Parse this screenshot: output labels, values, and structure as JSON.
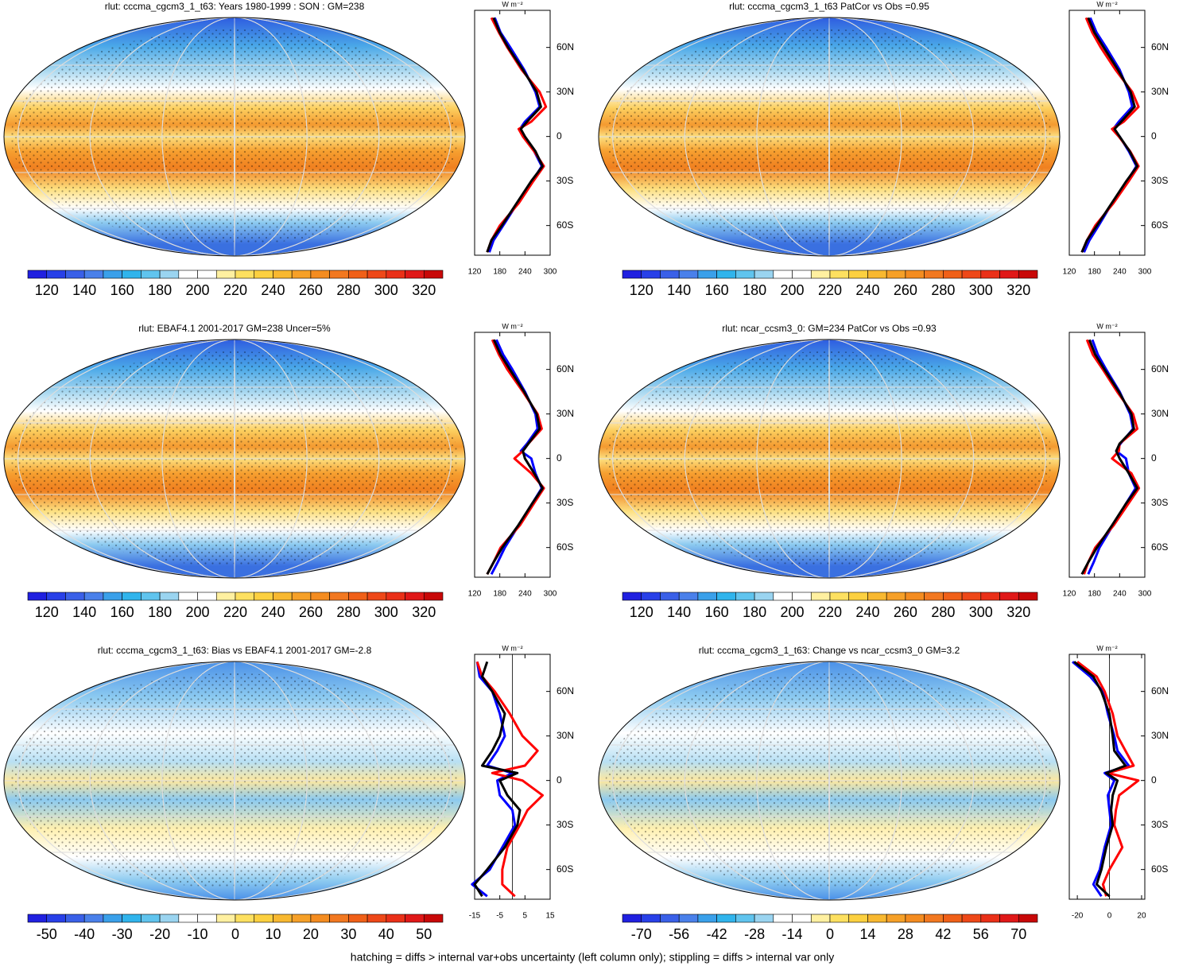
{
  "chart_data": [
    {
      "type": "map",
      "title": "rlut: cccma_cgcm3_1_t63: Years 1980-1999 : SON : GM=238",
      "kind": "abs",
      "colorbar_ticks": [
        120,
        140,
        160,
        180,
        200,
        220,
        240,
        260,
        280,
        300,
        320
      ],
      "profile": {
        "unit": "W m⁻²",
        "xlim": [
          120,
          300
        ],
        "xticks": [
          120,
          180,
          240,
          300
        ],
        "ylim": [
          -80,
          85
        ],
        "yticks": [
          {
            "value": 60,
            "label": "60N"
          },
          {
            "value": 30,
            "label": "30N"
          },
          0,
          {
            "value": -30,
            "label": "30S"
          },
          {
            "value": -60,
            "label": "60S"
          }
        ],
        "lat": [
          80,
          70,
          60,
          45,
          30,
          20,
          10,
          5,
          0,
          -10,
          -20,
          -30,
          -45,
          -60,
          -70,
          -78
        ],
        "series": [
          {
            "color": "#0000ff",
            "values": [
              168,
              182,
              205,
              238,
              265,
              275,
              240,
              228,
              238,
              262,
              280,
              258,
              222,
              188,
              165,
              155
            ]
          },
          {
            "color": "#ff0000",
            "values": [
              160,
              178,
              198,
              232,
              275,
              290,
              255,
              225,
              235,
              262,
              285,
              260,
              225,
              180,
              160,
              150
            ]
          },
          {
            "color": "#000000",
            "values": [
              165,
              180,
              200,
              235,
              268,
              278,
              245,
              230,
              240,
              265,
              282,
              255,
              220,
              185,
              160,
              150
            ]
          }
        ]
      }
    },
    {
      "type": "map",
      "title": "rlut: cccma_cgcm3_1_t63 PatCor vs Obs =0.95",
      "kind": "abs",
      "colorbar_ticks": [
        120,
        140,
        160,
        180,
        200,
        220,
        240,
        260,
        280,
        300,
        320
      ],
      "profile": {
        "unit": "W m⁻²",
        "xlim": [
          120,
          300
        ],
        "xticks": [
          120,
          180,
          240,
          300
        ],
        "ylim": [
          -80,
          85
        ],
        "yticks": [
          {
            "value": 60,
            "label": "60N"
          },
          {
            "value": 30,
            "label": "30N"
          },
          0,
          {
            "value": -30,
            "label": "30S"
          },
          {
            "value": -60,
            "label": "60S"
          }
        ],
        "lat": [
          80,
          70,
          60,
          45,
          30,
          20,
          10,
          5,
          0,
          -10,
          -20,
          -30,
          -45,
          -60,
          -70,
          -78
        ],
        "series": [
          {
            "color": "#0000ff",
            "values": [
              170,
              185,
              208,
              240,
              262,
              270,
              238,
              225,
              240,
              262,
              280,
              258,
              222,
              190,
              168,
              155
            ]
          },
          {
            "color": "#ff0000",
            "values": [
              160,
              175,
              195,
              230,
              270,
              285,
              250,
              222,
              238,
              265,
              285,
              262,
              225,
              182,
              162,
              150
            ]
          },
          {
            "color": "#000000",
            "values": [
              165,
              180,
              202,
              236,
              266,
              276,
              244,
              228,
              240,
              264,
              282,
              256,
              221,
              186,
              162,
              150
            ]
          }
        ]
      }
    },
    {
      "type": "map",
      "title": "rlut: EBAF4.1 2001-2017 GM=238 Uncer=5%",
      "kind": "abs",
      "colorbar_ticks": [
        120,
        140,
        160,
        180,
        200,
        220,
        240,
        260,
        280,
        300,
        320
      ],
      "profile": {
        "unit": "W m⁻²",
        "xlim": [
          120,
          300
        ],
        "xticks": [
          120,
          180,
          240,
          300
        ],
        "ylim": [
          -80,
          85
        ],
        "yticks": [
          {
            "value": 60,
            "label": "60N"
          },
          {
            "value": 30,
            "label": "30N"
          },
          0,
          {
            "value": -30,
            "label": "30S"
          },
          {
            "value": -60,
            "label": "60S"
          }
        ],
        "lat": [
          80,
          70,
          60,
          45,
          30,
          20,
          10,
          5,
          0,
          -10,
          -20,
          -30,
          -45,
          -60,
          -70,
          -78
        ],
        "series": [
          {
            "color": "#0000ff",
            "values": [
              172,
              188,
              210,
              240,
              265,
              270,
              245,
              230,
              255,
              265,
              280,
              258,
              225,
              192,
              175,
              160
            ]
          },
          {
            "color": "#ff0000",
            "values": [
              162,
              178,
              198,
              235,
              270,
              280,
              248,
              235,
              215,
              255,
              285,
              262,
              228,
              182,
              165,
              150
            ]
          },
          {
            "color": "#000000",
            "values": [
              166,
              182,
              204,
              238,
              268,
              275,
              248,
              235,
              240,
              262,
              282,
              258,
              224,
              186,
              165,
              150
            ]
          }
        ]
      }
    },
    {
      "type": "map",
      "title": "rlut: ncar_ccsm3_0: GM=234 PatCor vs Obs =0.93",
      "kind": "abs",
      "colorbar_ticks": [
        120,
        140,
        160,
        180,
        200,
        220,
        240,
        260,
        280,
        300,
        320
      ],
      "profile": {
        "unit": "W m⁻²",
        "xlim": [
          120,
          300
        ],
        "xticks": [
          120,
          180,
          240,
          300
        ],
        "ylim": [
          -80,
          85
        ],
        "yticks": [
          {
            "value": 60,
            "label": "60N"
          },
          {
            "value": 30,
            "label": "30N"
          },
          0,
          {
            "value": -30,
            "label": "30S"
          },
          {
            "value": -60,
            "label": "60S"
          }
        ],
        "lat": [
          80,
          70,
          60,
          45,
          30,
          20,
          10,
          5,
          0,
          -10,
          -20,
          -30,
          -45,
          -60,
          -70,
          -78
        ],
        "series": [
          {
            "color": "#0000ff",
            "values": [
              175,
              188,
              208,
              240,
              265,
              272,
              242,
              232,
              255,
              262,
              278,
              256,
              224,
              192,
              178,
              165
            ]
          },
          {
            "color": "#ff0000",
            "values": [
              162,
              176,
              200,
              234,
              272,
              282,
              240,
              238,
              222,
              268,
              286,
              262,
              226,
              182,
              165,
              155
            ]
          },
          {
            "color": "#000000",
            "values": [
              168,
              182,
              204,
              238,
              268,
              274,
              240,
              232,
              240,
              262,
              282,
              256,
              222,
              186,
              165,
              150
            ]
          }
        ]
      }
    },
    {
      "type": "map",
      "title": "rlut: cccma_cgcm3_1_t63: Bias vs EBAF4.1 2001-2017  GM=-2.8",
      "kind": "diff",
      "colorbar_ticks": [
        -50,
        -40,
        -30,
        -20,
        -10,
        0,
        10,
        20,
        30,
        40,
        50
      ],
      "profile": {
        "unit": "W m⁻²",
        "xlim": [
          -15,
          15
        ],
        "xticks": [
          -15,
          -5,
          5,
          15
        ],
        "ylim": [
          -80,
          85
        ],
        "yticks": [
          {
            "value": 60,
            "label": "60N"
          },
          {
            "value": 30,
            "label": "30N"
          },
          0,
          {
            "value": -30,
            "label": "30S"
          },
          {
            "value": -60,
            "label": "60S"
          }
        ],
        "lat": [
          80,
          70,
          60,
          45,
          30,
          20,
          10,
          5,
          0,
          -10,
          -20,
          -30,
          -45,
          -60,
          -70,
          -78
        ],
        "series": [
          {
            "color": "#0000ff",
            "values": [
              -14,
              -13,
              -8,
              -5,
              -3,
              -6,
              -10,
              0,
              -6,
              -5,
              0,
              1,
              -4,
              -9,
              -16,
              -10
            ]
          },
          {
            "color": "#ff0000",
            "values": [
              -14,
              -12,
              -7,
              -1,
              4,
              10,
              5,
              -8,
              4,
              12,
              6,
              3,
              -2,
              -4,
              -4,
              1
            ]
          },
          {
            "color": "#000000",
            "values": [
              -10,
              -12,
              -8,
              -3,
              -5,
              -8,
              -12,
              2,
              -5,
              -2,
              3,
              2,
              -3,
              -10,
              -15,
              -12
            ]
          }
        ]
      }
    },
    {
      "type": "map",
      "title": "rlut: cccma_cgcm3_1_t63: Change vs ncar_ccsm3_0 GM=3.2",
      "kind": "diff",
      "colorbar_ticks": [
        -70,
        -56,
        -42,
        -28,
        -14,
        0,
        14,
        28,
        42,
        56,
        70
      ],
      "profile": {
        "unit": "W m⁻²",
        "xlim": [
          -25,
          22
        ],
        "xticks": [
          -20,
          0,
          20
        ],
        "ylim": [
          -80,
          85
        ],
        "yticks": [
          {
            "value": 60,
            "label": "60N"
          },
          {
            "value": 30,
            "label": "30N"
          },
          0,
          {
            "value": -30,
            "label": "30S"
          },
          {
            "value": -60,
            "label": "60S"
          }
        ],
        "lat": [
          80,
          70,
          60,
          45,
          30,
          20,
          10,
          5,
          0,
          -10,
          -20,
          -30,
          -45,
          -60,
          -70,
          -78
        ],
        "series": [
          {
            "color": "#0000ff",
            "values": [
              -23,
              -12,
              -4,
              -1,
              3,
              5,
              12,
              -3,
              3,
              -1,
              0,
              1,
              -3,
              -6,
              -10,
              -5
            ]
          },
          {
            "color": "#ff0000",
            "values": [
              -20,
              -8,
              -3,
              2,
              5,
              10,
              15,
              -1,
              18,
              6,
              4,
              3,
              8,
              0,
              -4,
              -2
            ]
          },
          {
            "color": "#000000",
            "values": [
              -22,
              -10,
              -5,
              0,
              2,
              3,
              10,
              -2,
              5,
              2,
              1,
              2,
              -2,
              -5,
              -8,
              0
            ]
          }
        ]
      }
    }
  ],
  "caption": "hatching = diffs > internal var+obs uncertainty (left column only); stippling = diffs > internal var only"
}
